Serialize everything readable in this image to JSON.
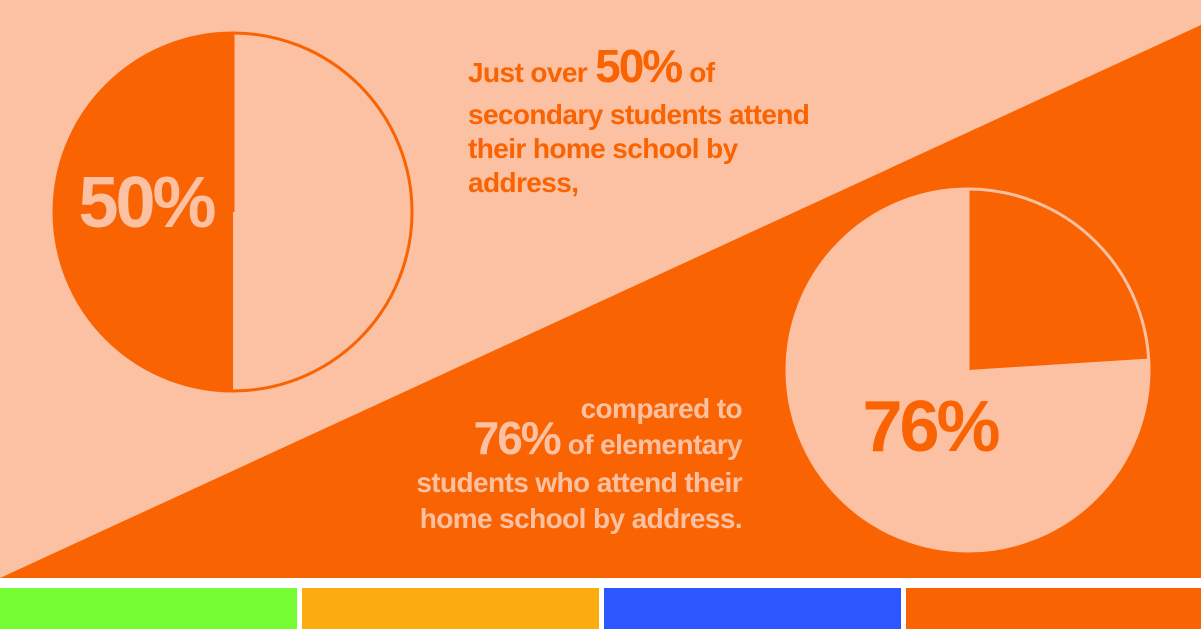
{
  "chart_data": [
    {
      "type": "pie",
      "values": [
        50,
        50
      ],
      "value_labels": [
        null,
        "50%"
      ],
      "colors": [
        "#fcc1a3",
        "#f96302"
      ],
      "caption": [
        [
          "Just over",
          "50%",
          "of"
        ],
        [
          "secondary students attend"
        ],
        [
          "their home school by"
        ],
        [
          "address,"
        ]
      ],
      "caption_color": "#f96302"
    },
    {
      "type": "pie",
      "values": [
        24,
        76
      ],
      "value_labels": [
        null,
        "76%"
      ],
      "colors": [
        "#f96302",
        "#fcc1a3"
      ],
      "caption": [
        [
          "compared to"
        ],
        [
          "76%",
          "of elementary"
        ],
        [
          "students who attend their"
        ],
        [
          "home school by address."
        ]
      ],
      "caption_color": "#fcc1a3"
    }
  ]
}
